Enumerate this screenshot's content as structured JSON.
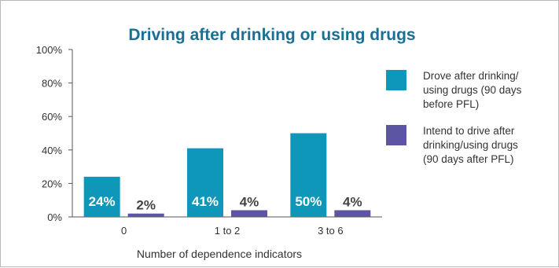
{
  "chart_data": {
    "type": "bar",
    "title": "Driving after drinking or using drugs",
    "xlabel": "Number of dependence indicators",
    "ylabel": "",
    "categories": [
      "0",
      "1 to 2",
      "3 to 6"
    ],
    "series": [
      {
        "name": "Drove after drinking/ using drugs (90 days before PFL)",
        "legend_lines": [
          "Drove after drinking/",
          "using drugs (90 days",
          "before PFL)"
        ],
        "values": [
          24,
          41,
          50
        ],
        "labels": [
          "24%",
          "41%",
          "50%"
        ],
        "color": "#0e97b8"
      },
      {
        "name": "Intend to drive after drinking/using drugs (90 days after PFL)",
        "legend_lines": [
          "Intend to drive after",
          "drinking/using drugs",
          "(90 days after PFL)"
        ],
        "values": [
          2,
          4,
          4
        ],
        "labels": [
          "2%",
          "4%",
          "4%"
        ],
        "color": "#5c55a4"
      }
    ],
    "yticks": [
      "0%",
      "20%",
      "40%",
      "60%",
      "80%",
      "100%"
    ],
    "ylim": [
      0,
      100
    ],
    "legend_position": "right",
    "grid": false
  }
}
